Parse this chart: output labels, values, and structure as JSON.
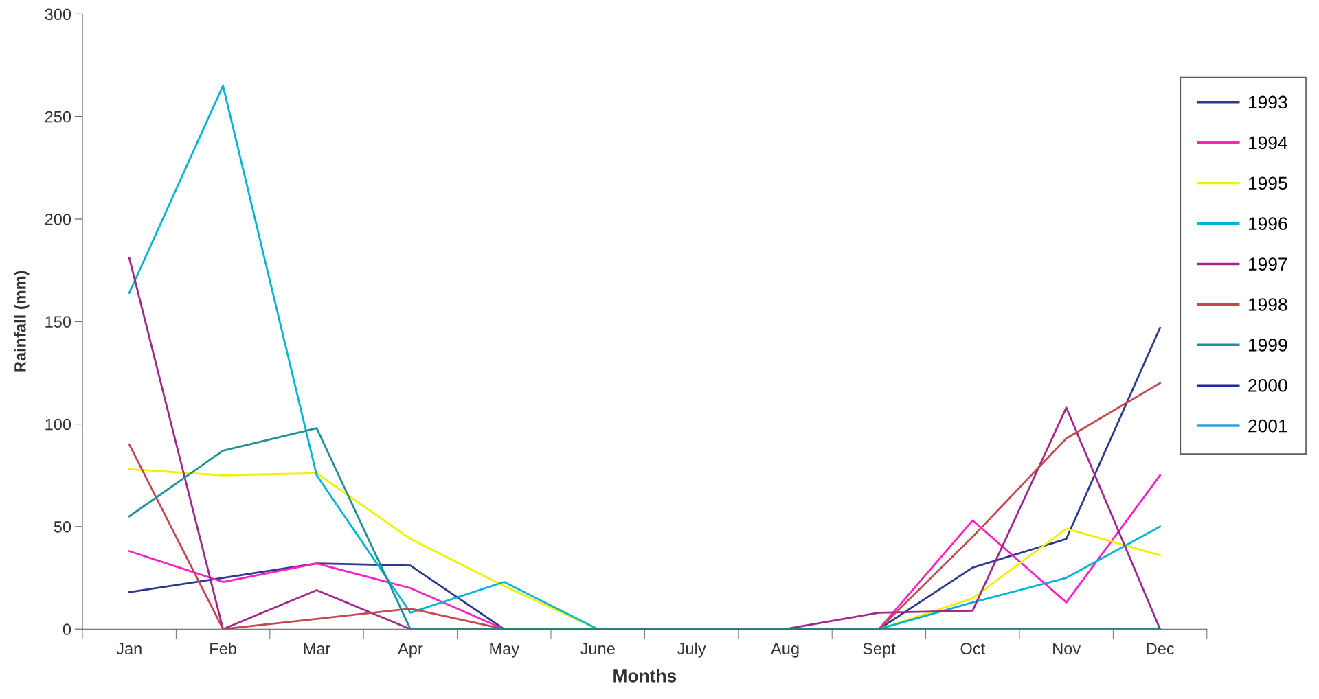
{
  "chart_data": {
    "type": "line",
    "xlabel": "Months",
    "ylabel": "Rainfall (mm)",
    "categories": [
      "Jan",
      "Feb",
      "Mar",
      "Apr",
      "May",
      "June",
      "July",
      "Aug",
      "Sept",
      "Oct",
      "Nov",
      "Dec"
    ],
    "ylim": [
      0,
      300
    ],
    "yticks": [
      0,
      50,
      100,
      150,
      200,
      250,
      300
    ],
    "grid": false,
    "legend": "right",
    "marker": "none",
    "series": [
      {
        "name": "1993",
        "color": "#2b3a8c",
        "values": [
          18,
          25,
          32,
          31,
          0,
          0,
          0,
          0,
          0,
          30,
          44,
          147
        ]
      },
      {
        "name": "1994",
        "color": "#ff1ec8",
        "values": [
          38,
          23,
          32,
          20,
          0,
          0,
          0,
          0,
          0,
          53,
          13,
          75
        ]
      },
      {
        "name": "1995",
        "color": "#f0f000",
        "values": [
          78,
          75,
          76,
          44,
          21,
          0,
          0,
          0,
          0,
          15,
          49,
          36
        ]
      },
      {
        "name": "1996",
        "color": "#00b4d8",
        "values": [
          164,
          265,
          75,
          8,
          23,
          0,
          0,
          0,
          0,
          13,
          25,
          50
        ]
      },
      {
        "name": "1997",
        "color": "#a0288c",
        "values": [
          181,
          0,
          19,
          0,
          0,
          0,
          0,
          0,
          8,
          9,
          108,
          0
        ]
      },
      {
        "name": "1998",
        "color": "#c84650",
        "values": [
          90,
          0,
          5,
          10,
          0,
          0,
          0,
          0,
          0,
          45,
          93,
          120
        ]
      },
      {
        "name": "1999",
        "color": "#1e9196",
        "values": [
          55,
          87,
          98,
          0,
          0,
          0,
          0,
          0,
          0,
          0,
          0,
          0
        ]
      },
      {
        "name": "2000",
        "color": "#1e28a0",
        "values": [
          null,
          null,
          null,
          null,
          null,
          null,
          null,
          null,
          null,
          null,
          null,
          null
        ]
      },
      {
        "name": "2001",
        "color": "#28a0dc",
        "values": [
          null,
          null,
          null,
          null,
          null,
          null,
          null,
          null,
          null,
          null,
          null,
          null
        ]
      }
    ]
  }
}
